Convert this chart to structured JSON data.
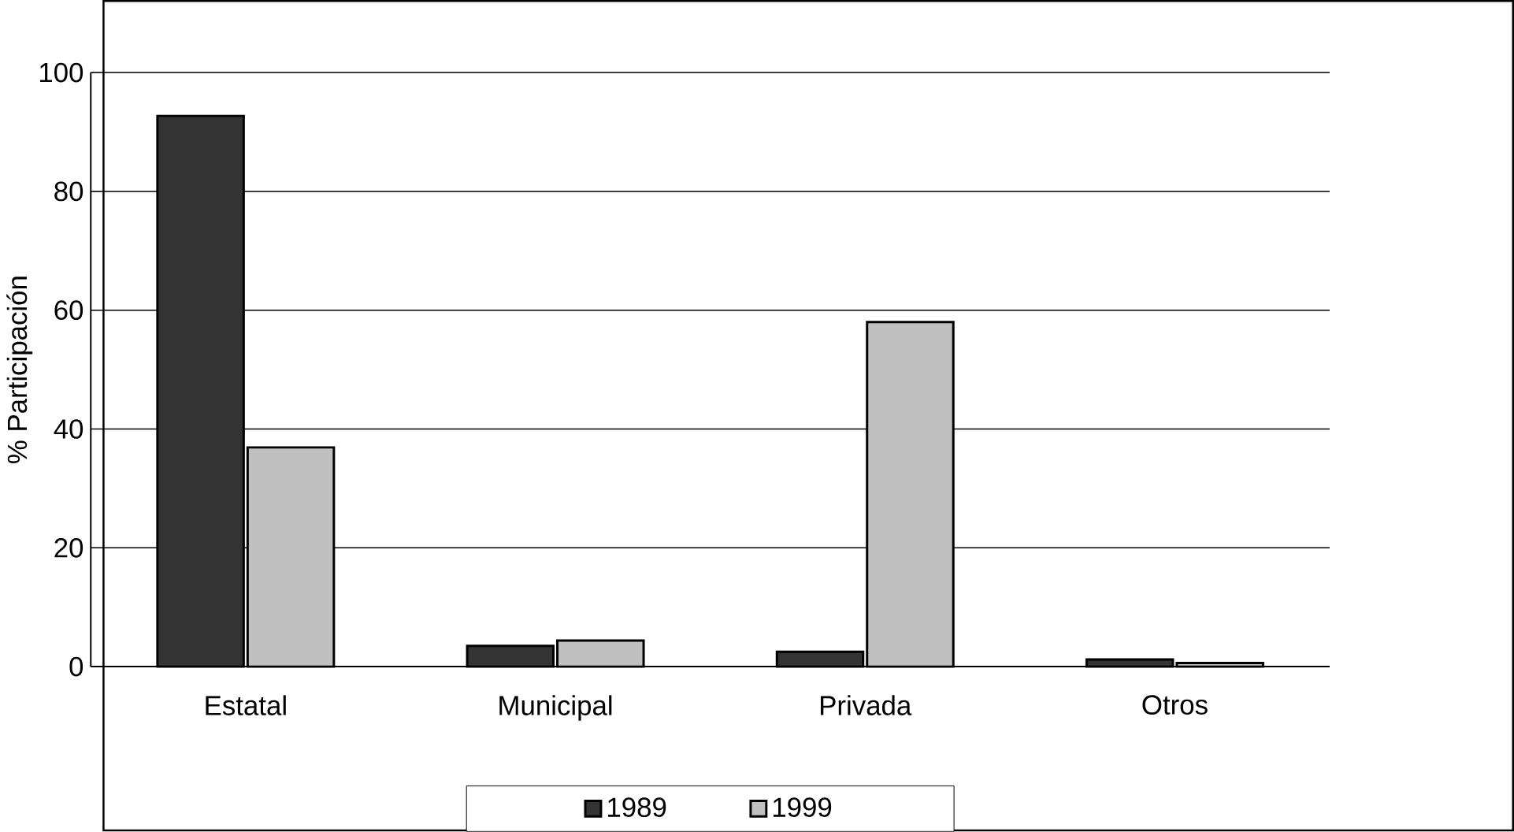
{
  "chart_data": {
    "type": "bar",
    "ylabel": "% Participación",
    "categories": [
      "Estatal",
      "Municipal",
      "Privada",
      "Otros"
    ],
    "series": [
      {
        "name": "1989",
        "color": "#333333",
        "values": [
          92.7,
          3.5,
          2.5,
          1.2
        ]
      },
      {
        "name": "1999",
        "color": "#c0c0c0",
        "values": [
          36.9,
          4.4,
          58.0,
          0.6
        ]
      }
    ],
    "ylim": [
      0,
      100
    ],
    "yticks": [
      0,
      20,
      40,
      60,
      80,
      100
    ],
    "grid": "y",
    "legend": "bottom"
  }
}
